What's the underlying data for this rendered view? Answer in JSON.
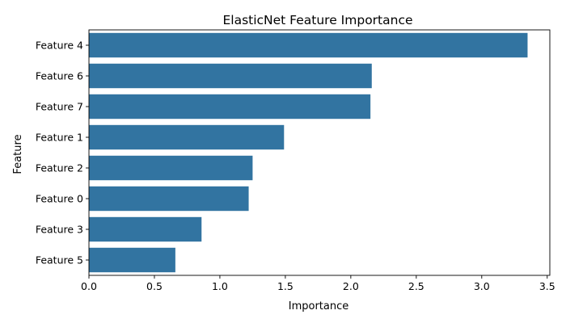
{
  "chart_data": {
    "type": "bar",
    "orientation": "horizontal",
    "title": "ElasticNet Feature Importance",
    "xlabel": "Importance",
    "ylabel": "Feature",
    "categories": [
      "Feature 4",
      "Feature 6",
      "Feature 7",
      "Feature 1",
      "Feature 2",
      "Feature 0",
      "Feature 3",
      "Feature 5"
    ],
    "values": [
      3.35,
      2.16,
      2.15,
      1.49,
      1.25,
      1.22,
      0.86,
      0.66
    ],
    "xlim": [
      0,
      3.52
    ],
    "xticks": [
      0,
      0.5,
      1,
      1.5,
      2,
      2.5,
      3,
      3.5
    ],
    "xtick_labels": [
      "0.0",
      "0.5",
      "1.0",
      "1.5",
      "2.0",
      "2.5",
      "3.0",
      "3.5"
    ],
    "bar_color": "#3274a1",
    "grid": false,
    "legend": "none"
  }
}
